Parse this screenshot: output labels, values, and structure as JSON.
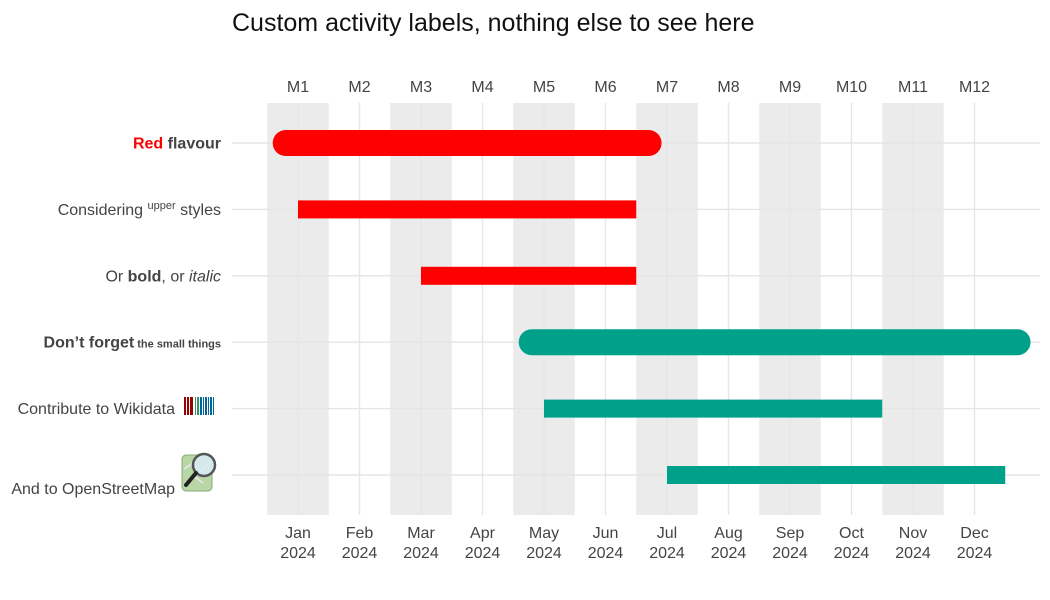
{
  "title": "Custom activity labels, nothing else to see here",
  "chart_data": {
    "type": "gantt",
    "x_unit": "month",
    "x_range": [
      1,
      12
    ],
    "top_axis_ticks": [
      "M1",
      "M2",
      "M3",
      "M4",
      "M5",
      "M6",
      "M7",
      "M8",
      "M9",
      "M10",
      "M11",
      "M12"
    ],
    "bottom_axis_ticks": [
      {
        "month": "Jan",
        "year": "2024"
      },
      {
        "month": "Feb",
        "year": "2024"
      },
      {
        "month": "Mar",
        "year": "2024"
      },
      {
        "month": "Apr",
        "year": "2024"
      },
      {
        "month": "May",
        "year": "2024"
      },
      {
        "month": "Jun",
        "year": "2024"
      },
      {
        "month": "Jul",
        "year": "2024"
      },
      {
        "month": "Aug",
        "year": "2024"
      },
      {
        "month": "Sep",
        "year": "2024"
      },
      {
        "month": "Oct",
        "year": "2024"
      },
      {
        "month": "Nov",
        "year": "2024"
      },
      {
        "month": "Dec",
        "year": "2024"
      }
    ],
    "shaded_months": [
      1,
      3,
      5,
      7,
      9,
      11
    ],
    "activities": [
      {
        "label_parts": [
          {
            "text": "Red",
            "style": "bold-red"
          },
          {
            "text": " flavour",
            "style": "bold"
          }
        ],
        "start": 0.8,
        "end": 6.7,
        "color": "#ff0000",
        "rounded": true
      },
      {
        "label_parts": [
          {
            "text": "Considering ",
            "style": "normal"
          },
          {
            "text": "upper",
            "style": "sup"
          },
          {
            "text": " styles",
            "style": "normal"
          }
        ],
        "start": 1.0,
        "end": 6.5,
        "color": "#ff0000",
        "rounded": false
      },
      {
        "label_parts": [
          {
            "text": "Or ",
            "style": "normal"
          },
          {
            "text": "bold",
            "style": "bold"
          },
          {
            "text": ", or ",
            "style": "normal"
          },
          {
            "text": "italic",
            "style": "italic"
          }
        ],
        "start": 3.0,
        "end": 6.5,
        "color": "#ff0000",
        "rounded": false
      },
      {
        "label_parts": [
          {
            "text": "Don’t forget",
            "style": "bold"
          },
          {
            "text": " the small things",
            "style": "bold-small"
          }
        ],
        "start": 4.8,
        "end": 12.7,
        "color": "#00a08a",
        "rounded": true
      },
      {
        "label_parts": [
          {
            "text": "Contribute to Wikidata",
            "style": "normal"
          }
        ],
        "icon": "wikidata-logo-icon",
        "start": 5.0,
        "end": 10.5,
        "color": "#00a08a",
        "rounded": false
      },
      {
        "label_parts": [
          {
            "text": "And to OpenStreetMap",
            "style": "normal"
          }
        ],
        "icon": "openstreetmap-logo-icon",
        "start": 7.0,
        "end": 12.5,
        "color": "#00a08a",
        "rounded": false
      }
    ],
    "colors": {
      "red": "#ff0000",
      "teal": "#00a08a",
      "shade": "#ebebeb",
      "grid": "#e5e5e5"
    }
  }
}
